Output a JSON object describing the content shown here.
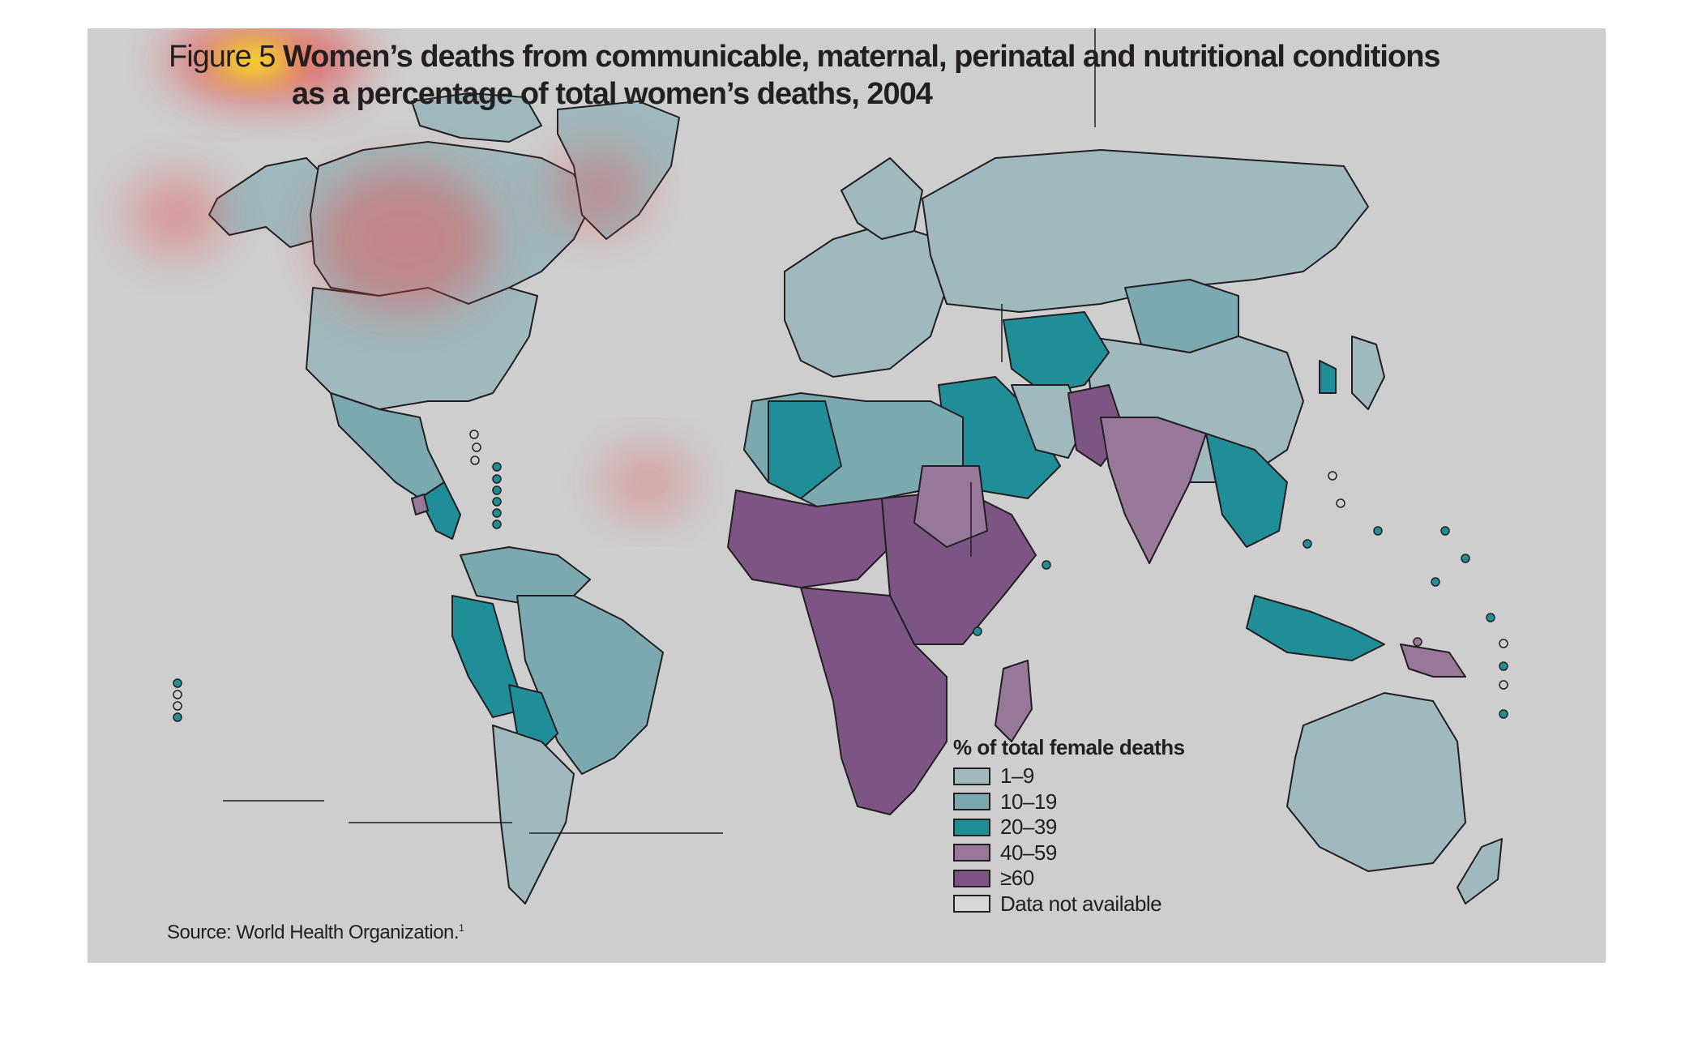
{
  "figure": {
    "label": "Figure 5",
    "title_line1": "Women’s deaths from communicable, maternal, perinatal and nutritional conditions",
    "title_line2": "as a percentage of total women’s deaths, 2004"
  },
  "legend": {
    "title": "% of total female deaths",
    "items": [
      {
        "label": "1–9",
        "color": "#a0b9be"
      },
      {
        "label": "10–19",
        "color": "#7aa9b0"
      },
      {
        "label": "20–39",
        "color": "#1f8e98"
      },
      {
        "label": "40–59",
        "color": "#987899"
      },
      {
        "label": "≥60",
        "color": "#7c5584"
      },
      {
        "label": "Data not available",
        "color": "#d7d7d7"
      }
    ]
  },
  "source": {
    "text": "Source: World Health Organization.",
    "footnote": "1"
  },
  "colors": {
    "background": "#cecece",
    "border": "#231f20",
    "heatmap_hot": "#ffe600",
    "heatmap_warm": "#e54b4b"
  }
}
